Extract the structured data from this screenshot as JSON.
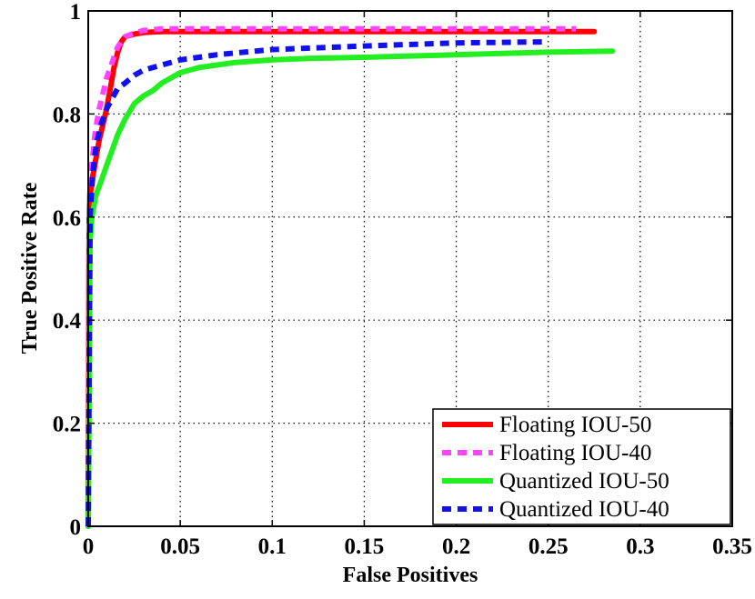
{
  "chart_data": {
    "type": "line",
    "title": "",
    "xlabel": "False Positives",
    "ylabel": "True Positive Rate",
    "xlim": [
      0,
      0.35
    ],
    "ylim": [
      0,
      1
    ],
    "xticks": [
      0,
      0.05,
      0.1,
      0.15,
      0.2,
      0.25,
      0.3,
      0.35
    ],
    "xtick_labels": [
      "0",
      "0.05",
      "0.1",
      "0.15",
      "0.2",
      "0.25",
      "0.3",
      "0.35"
    ],
    "yticks": [
      0,
      0.2,
      0.4,
      0.6,
      0.8,
      1
    ],
    "ytick_labels": [
      "0",
      "0.2",
      "0.4",
      "0.6",
      "0.8",
      "1"
    ],
    "grid": true,
    "legend_position": "bottom-right",
    "series": [
      {
        "name": "Floating IOU-50",
        "color": "#ff0000",
        "style": "solid",
        "x": [
          0,
          0.0005,
          0.001,
          0.002,
          0.003,
          0.004,
          0.005,
          0.006,
          0.008,
          0.01,
          0.012,
          0.014,
          0.016,
          0.018,
          0.02,
          0.025,
          0.03,
          0.04,
          0.06,
          0.1,
          0.15,
          0.2,
          0.25,
          0.275
        ],
        "y": [
          0,
          0.6,
          0.64,
          0.67,
          0.69,
          0.71,
          0.73,
          0.75,
          0.78,
          0.81,
          0.85,
          0.89,
          0.92,
          0.94,
          0.95,
          0.955,
          0.958,
          0.96,
          0.96,
          0.96,
          0.96,
          0.96,
          0.96,
          0.96
        ]
      },
      {
        "name": "Floating IOU-40",
        "color": "#ff44ff",
        "style": "dashed",
        "x": [
          0,
          0.0005,
          0.001,
          0.002,
          0.003,
          0.004,
          0.005,
          0.006,
          0.008,
          0.01,
          0.012,
          0.014,
          0.016,
          0.018,
          0.02,
          0.025,
          0.03,
          0.04,
          0.06,
          0.1,
          0.15,
          0.2,
          0.25,
          0.265
        ],
        "y": [
          0,
          0.61,
          0.66,
          0.7,
          0.74,
          0.77,
          0.79,
          0.81,
          0.84,
          0.87,
          0.89,
          0.91,
          0.93,
          0.94,
          0.95,
          0.957,
          0.962,
          0.965,
          0.965,
          0.965,
          0.965,
          0.965,
          0.965,
          0.965
        ]
      },
      {
        "name": "Quantized IOU-50",
        "color": "#22ee22",
        "style": "solid",
        "x": [
          0,
          0.001,
          0.002,
          0.003,
          0.004,
          0.005,
          0.007,
          0.01,
          0.013,
          0.016,
          0.02,
          0.025,
          0.03,
          0.035,
          0.04,
          0.05,
          0.06,
          0.07,
          0.08,
          0.1,
          0.12,
          0.15,
          0.2,
          0.25,
          0.285
        ],
        "y": [
          0,
          0.55,
          0.6,
          0.62,
          0.64,
          0.65,
          0.67,
          0.7,
          0.73,
          0.76,
          0.79,
          0.82,
          0.835,
          0.845,
          0.86,
          0.88,
          0.89,
          0.895,
          0.9,
          0.905,
          0.908,
          0.91,
          0.915,
          0.92,
          0.922
        ]
      },
      {
        "name": "Quantized IOU-40",
        "color": "#1111ee",
        "style": "dashed",
        "x": [
          0,
          0.001,
          0.002,
          0.003,
          0.004,
          0.005,
          0.007,
          0.01,
          0.013,
          0.016,
          0.02,
          0.025,
          0.03,
          0.04,
          0.05,
          0.07,
          0.1,
          0.15,
          0.2,
          0.25
        ],
        "y": [
          0,
          0.6,
          0.66,
          0.7,
          0.73,
          0.75,
          0.78,
          0.81,
          0.83,
          0.85,
          0.86,
          0.875,
          0.885,
          0.895,
          0.905,
          0.915,
          0.925,
          0.932,
          0.938,
          0.94
        ]
      }
    ]
  }
}
